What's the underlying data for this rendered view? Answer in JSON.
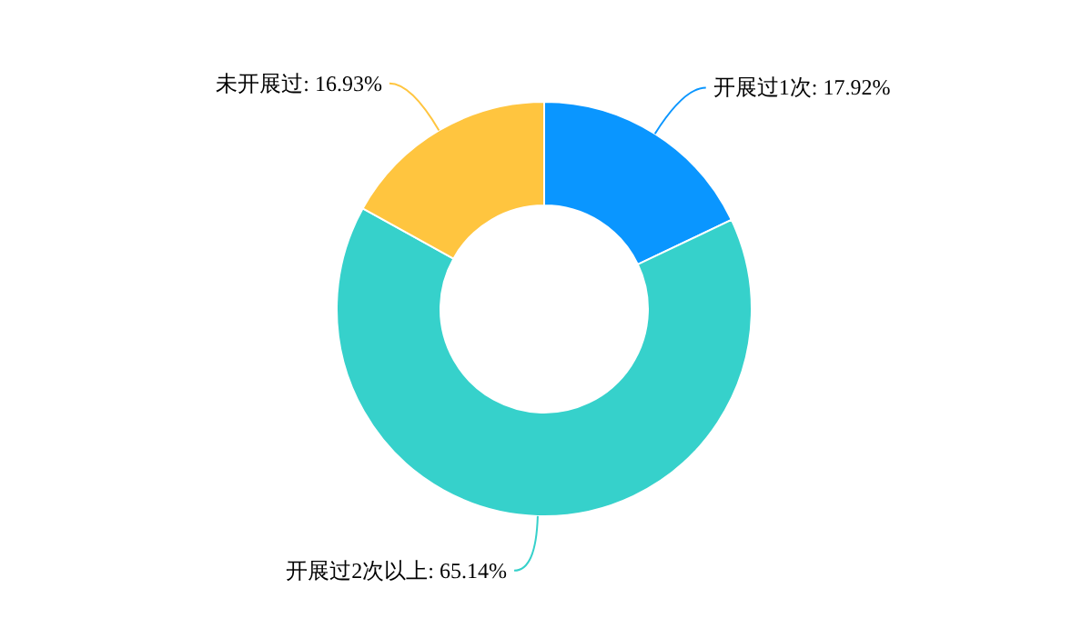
{
  "chart_data": {
    "type": "donut",
    "categories": [
      "开展过1次",
      "开展过2次以上",
      "未开展过"
    ],
    "values": [
      17.92,
      65.14,
      16.93
    ],
    "value_labels": [
      "17.92%",
      "65.14%",
      "16.93%"
    ],
    "colors": [
      "#0a96ff",
      "#36d1cb",
      "#ffc53f"
    ]
  }
}
